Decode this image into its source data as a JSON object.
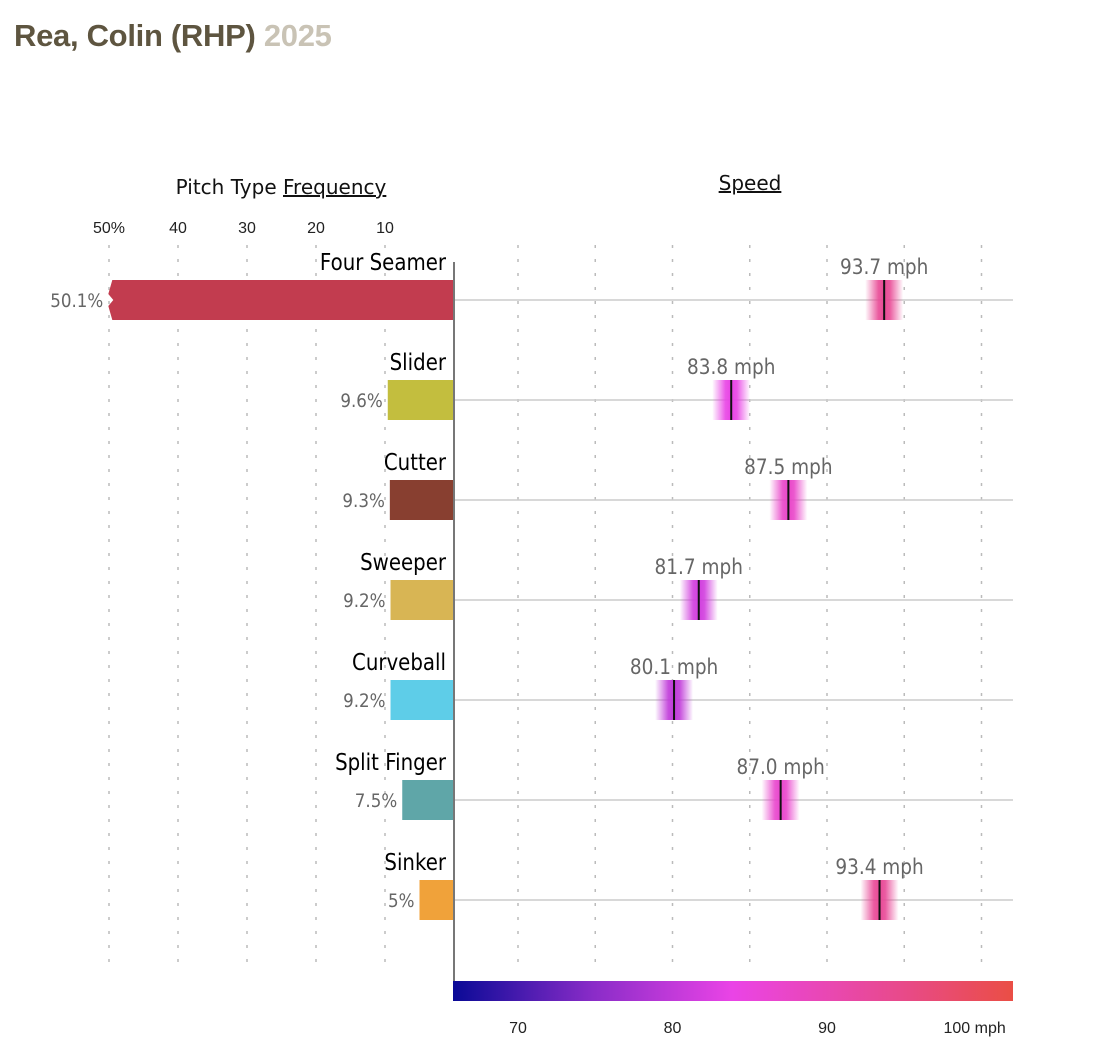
{
  "header": {
    "player": "Rea, Colin (RHP)",
    "season": "2025"
  },
  "chart_data": {
    "type": "bar",
    "title": "Rea, Colin (RHP) 2025",
    "panels": {
      "frequency": {
        "title_prefix": "Pitch Type ",
        "title_underlined": "Frequency",
        "tick_labels": [
          "50%",
          "40",
          "30",
          "20",
          "10"
        ],
        "ticks": [
          50,
          40,
          30,
          20,
          10
        ],
        "xlim": [
          0,
          50
        ],
        "direction": "right-to-left",
        "grid": true
      },
      "speed": {
        "title": "Speed",
        "tick_labels": [
          "70",
          "80",
          "90",
          "100 mph"
        ],
        "ticks": [
          70,
          80,
          90,
          100
        ],
        "grid_step": 5,
        "xlim": [
          65.9,
          102.2
        ],
        "grid": true,
        "colorbar": {
          "stops": [
            {
              "value": 65.9,
              "color": "#0a0a96"
            },
            {
              "value": 75,
              "color": "#8a2cc8"
            },
            {
              "value": 84,
              "color": "#ea44e6"
            },
            {
              "value": 95,
              "color": "#e84a8a"
            },
            {
              "value": 102.2,
              "color": "#ea4e45"
            }
          ]
        }
      }
    },
    "categories": [
      "Four Seamer",
      "Slider",
      "Cutter",
      "Sweeper",
      "Curveball",
      "Split Finger",
      "Sinker"
    ],
    "series": [
      {
        "name": "Frequency",
        "unit": "%",
        "values": [
          50.1,
          9.6,
          9.3,
          9.2,
          9.2,
          7.5,
          5
        ],
        "labels": [
          "50.1%",
          "9.6%",
          "9.3%",
          "9.2%",
          "9.2%",
          "7.5%",
          "5%"
        ],
        "colors": [
          "#c23c4f",
          "#c3be3e",
          "#883f30",
          "#d8b554",
          "#5ecde8",
          "#5fa6a8",
          "#f0a23a"
        ]
      },
      {
        "name": "Speed",
        "unit": "mph",
        "values": [
          93.7,
          83.8,
          87.5,
          81.7,
          80.1,
          87.0,
          93.4
        ],
        "labels": [
          "93.7 mph",
          "83.8 mph",
          "87.5 mph",
          "81.7 mph",
          "80.1 mph",
          "87.0 mph",
          "93.4 mph"
        ]
      }
    ]
  }
}
